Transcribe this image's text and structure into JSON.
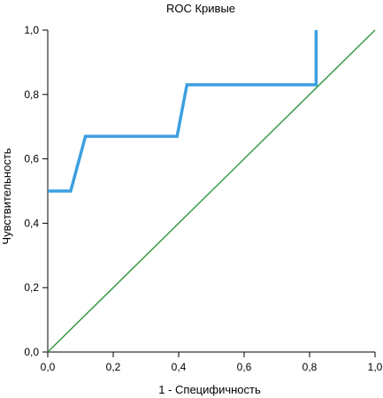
{
  "chart_data": {
    "type": "line",
    "title": "ROC Кривые",
    "xlabel": "1 - Специфичность",
    "ylabel": "Чувствительность",
    "xlim": [
      0,
      1
    ],
    "ylim": [
      0,
      1
    ],
    "x_ticks": [
      0,
      0.2,
      0.4,
      0.6,
      0.8,
      1.0
    ],
    "y_ticks": [
      0,
      0.2,
      0.4,
      0.6,
      0.8,
      1.0
    ],
    "x_tick_labels": [
      "0,0",
      "0,2",
      "0,4",
      "0,6",
      "0,8",
      "1,0"
    ],
    "y_tick_labels": [
      "0,0",
      "0,2",
      "0,4",
      "0,6",
      "0,8",
      "1,0"
    ],
    "grid": false,
    "legend": false,
    "series": [
      {
        "color": "#3d9fe0",
        "x": [
          0.0,
          0.07,
          0.115,
          0.395,
          0.425,
          0.82,
          0.82
        ],
        "y": [
          0.5,
          0.5,
          0.67,
          0.67,
          0.83,
          0.83,
          1.0
        ]
      },
      {
        "color": "#3a9a46",
        "x": [
          0.0,
          1.0
        ],
        "y": [
          0.0,
          1.0
        ]
      }
    ]
  }
}
